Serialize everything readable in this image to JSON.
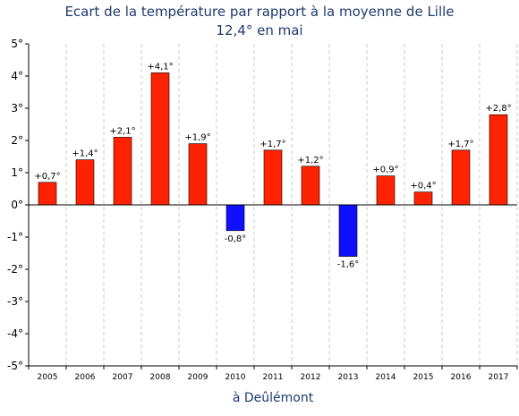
{
  "chart_data": {
    "type": "bar",
    "title": "Ecart de la température par rapport à la moyenne de Lille",
    "subtitle": "12,4° en mai",
    "xlabel": "à Deûlémont",
    "ylabel": "",
    "ylim": [
      -5,
      5
    ],
    "yticks": [
      "5°",
      "4°",
      "3°",
      "2°",
      "1°",
      "0°",
      "-1°",
      "-2°",
      "-3°",
      "-4°",
      "-5°"
    ],
    "ytick_values": [
      5,
      4,
      3,
      2,
      1,
      0,
      -1,
      -2,
      -3,
      -4,
      -5
    ],
    "categories": [
      "2005",
      "2006",
      "2007",
      "2008",
      "2009",
      "2010",
      "2011",
      "2012",
      "2013",
      "2014",
      "2015",
      "2016",
      "2017"
    ],
    "values": [
      0.7,
      1.4,
      2.1,
      4.1,
      1.9,
      -0.8,
      1.7,
      1.2,
      -1.6,
      0.9,
      0.4,
      1.7,
      2.8
    ],
    "data_labels": [
      "+0,7°",
      "+1,4°",
      "+2,1°",
      "+4,1°",
      "+1,9°",
      "-0,8°",
      "+1,7°",
      "+1,2°",
      "-1,6°",
      "+0,9°",
      "+0,4°",
      "+1,7°",
      "+2,8°"
    ],
    "grid": true,
    "legend": "none",
    "colors": {
      "positive": "#ff2200",
      "negative": "#1010ff",
      "title": "#1f3a6e"
    }
  }
}
